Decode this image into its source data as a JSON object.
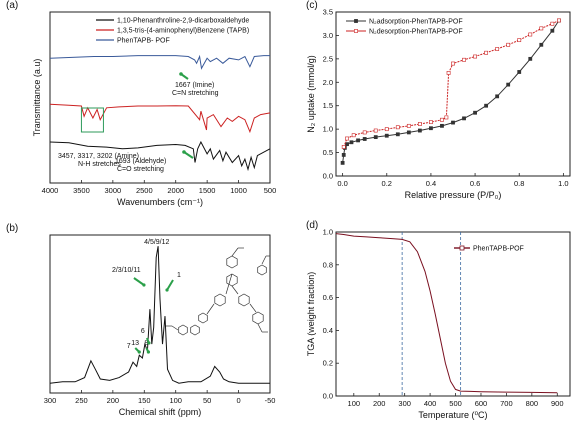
{
  "chart_data": [
    {
      "panel": "(a)",
      "type": "line",
      "xlabel": "Wavenumbers (cm⁻¹)",
      "ylabel": "Transmittance (a.u)",
      "xlim": [
        4000,
        500
      ],
      "xticks": [
        4000,
        3500,
        3000,
        2500,
        2000,
        1500,
        1000,
        500
      ],
      "series": [
        {
          "name": "1,10-Phenanthroline-2,9-dicarboxaldehyde",
          "color": "#111111",
          "x": [
            4000,
            3700,
            3400,
            3100,
            2850,
            2600,
            2300,
            2000,
            1850,
            1720,
            1693,
            1650,
            1600,
            1500,
            1450,
            1400,
            1300,
            1250,
            1200,
            1100,
            1000,
            950,
            900,
            850,
            800,
            750,
            700,
            600,
            500
          ],
          "y": [
            0.24,
            0.235,
            0.215,
            0.21,
            0.2,
            0.205,
            0.22,
            0.225,
            0.22,
            0.2,
            0.12,
            0.2,
            0.24,
            0.17,
            0.2,
            0.14,
            0.19,
            0.13,
            0.18,
            0.12,
            0.16,
            0.1,
            0.14,
            0.08,
            0.15,
            0.09,
            0.16,
            0.18,
            0.2
          ]
        },
        {
          "name": "1,3,5-tris-(4-aminophenyl)Benzene (TAPB)",
          "color": "#cc2222",
          "x": [
            4000,
            3700,
            3500,
            3457,
            3400,
            3317,
            3250,
            3202,
            3100,
            2900,
            2600,
            2300,
            2000,
            1800,
            1620,
            1600,
            1510,
            1500,
            1400,
            1280,
            1180,
            1100,
            1000,
            900,
            820,
            750,
            650,
            500
          ],
          "y": [
            0.46,
            0.455,
            0.45,
            0.39,
            0.44,
            0.38,
            0.43,
            0.37,
            0.44,
            0.445,
            0.45,
            0.45,
            0.452,
            0.45,
            0.37,
            0.42,
            0.31,
            0.38,
            0.4,
            0.33,
            0.38,
            0.36,
            0.39,
            0.37,
            0.3,
            0.38,
            0.4,
            0.41
          ]
        },
        {
          "name": "PhenTAPB- POF",
          "color": "#3a5a9a",
          "x": [
            4000,
            3600,
            3300,
            3000,
            2600,
            2200,
            2000,
            1800,
            1700,
            1667,
            1620,
            1590,
            1500,
            1450,
            1350,
            1250,
            1150,
            1000,
            900,
            820,
            750,
            600,
            500
          ],
          "y": [
            0.73,
            0.735,
            0.74,
            0.74,
            0.745,
            0.745,
            0.745,
            0.74,
            0.72,
            0.7,
            0.74,
            0.67,
            0.73,
            0.71,
            0.73,
            0.7,
            0.73,
            0.72,
            0.74,
            0.68,
            0.74,
            0.745,
            0.745
          ]
        }
      ],
      "annotations": [
        {
          "text": "1667 (Imine)",
          "x": 1667
        },
        {
          "text": "C=N stretching"
        },
        {
          "text": "3457, 3317, 3202 (Amine)",
          "x": 3317
        },
        {
          "text": "N-H stretches"
        },
        {
          "text": "1693 (Aldehyde)",
          "x": 1693
        },
        {
          "text": "C=O stretching"
        }
      ]
    },
    {
      "panel": "(b)",
      "type": "line",
      "xlabel": "Chemical shift (ppm)",
      "xlim": [
        300,
        -50
      ],
      "xticks": [
        300,
        250,
        200,
        150,
        100,
        50,
        0,
        -50
      ],
      "series": [
        {
          "name": "",
          "color": "#111111",
          "x": [
            300,
            280,
            260,
            245,
            235,
            228,
            220,
            205,
            190,
            175,
            168,
            162,
            158,
            153,
            149,
            145,
            141,
            138,
            135,
            131,
            128,
            125,
            121,
            117,
            113,
            105,
            95,
            80,
            60,
            45,
            38,
            30,
            24,
            15,
            0,
            -20,
            -50
          ],
          "y": [
            0.02,
            0.03,
            0.03,
            0.06,
            0.18,
            0.12,
            0.05,
            0.04,
            0.06,
            0.1,
            0.17,
            0.14,
            0.22,
            0.2,
            0.3,
            0.25,
            0.55,
            0.3,
            0.42,
            0.92,
            1.0,
            0.62,
            0.3,
            0.5,
            0.12,
            0.04,
            0.02,
            0.03,
            0.03,
            0.07,
            0.14,
            0.1,
            0.05,
            0.03,
            0.02,
            0.02,
            0.02
          ]
        }
      ],
      "annotations": [
        {
          "text": "4/5/9/12",
          "x": 128
        },
        {
          "text": "2/3/10/11",
          "x": 141
        },
        {
          "text": "1",
          "x": 117
        },
        {
          "text": "6",
          "x": 149
        },
        {
          "text": "13",
          "x": 158
        },
        {
          "text": "8",
          "x": 153
        },
        {
          "text": "7",
          "x": 162
        }
      ]
    },
    {
      "panel": "(c)",
      "type": "line",
      "xlabel": "Relative pressure (P/P₀)",
      "ylabel": "N₂ uptake (mmol/g)",
      "xlim": [
        -0.03,
        1.03
      ],
      "ylim": [
        0,
        3.5
      ],
      "xticks": [
        0.0,
        0.2,
        0.4,
        0.6,
        0.8,
        1.0
      ],
      "yticks": [
        0.0,
        0.5,
        1.0,
        1.5,
        2.0,
        2.5,
        3.0,
        3.5
      ],
      "legend": "top-left",
      "series": [
        {
          "name": "N₂adsorption-PhenTAPB-POF",
          "color": "#333333",
          "marker": "square",
          "x": [
            0.0,
            0.005,
            0.01,
            0.02,
            0.04,
            0.07,
            0.1,
            0.15,
            0.2,
            0.25,
            0.3,
            0.35,
            0.4,
            0.45,
            0.5,
            0.55,
            0.6,
            0.65,
            0.7,
            0.75,
            0.8,
            0.85,
            0.9,
            0.95,
            0.98
          ],
          "y": [
            0.28,
            0.45,
            0.6,
            0.68,
            0.72,
            0.76,
            0.79,
            0.83,
            0.86,
            0.89,
            0.93,
            0.97,
            1.02,
            1.07,
            1.14,
            1.23,
            1.35,
            1.5,
            1.7,
            1.95,
            2.22,
            2.5,
            2.8,
            3.1,
            3.32
          ]
        },
        {
          "name": "N₂desorption-PhenTAPB-POF",
          "color": "#cc2222",
          "marker": "open-square",
          "x": [
            0.98,
            0.95,
            0.9,
            0.85,
            0.8,
            0.75,
            0.7,
            0.65,
            0.6,
            0.55,
            0.5,
            0.48,
            0.47,
            0.45,
            0.4,
            0.35,
            0.3,
            0.25,
            0.2,
            0.15,
            0.1,
            0.05,
            0.02,
            0.005
          ],
          "y": [
            3.32,
            3.25,
            3.15,
            3.02,
            2.9,
            2.8,
            2.71,
            2.63,
            2.55,
            2.48,
            2.4,
            2.2,
            1.25,
            1.2,
            1.15,
            1.11,
            1.07,
            1.04,
            1.0,
            0.97,
            0.93,
            0.87,
            0.8,
            0.62
          ]
        }
      ]
    },
    {
      "panel": "(d)",
      "type": "line",
      "xlabel": "Temperature (⁰C)",
      "ylabel": "TGA (weight fraction)",
      "xlim": [
        30,
        950
      ],
      "ylim": [
        0.0,
        1.0
      ],
      "xticks": [
        100,
        200,
        300,
        400,
        500,
        600,
        700,
        800,
        900
      ],
      "yticks": [
        0.0,
        0.2,
        0.4,
        0.6,
        0.8,
        1.0
      ],
      "legend": "top-right",
      "vlines": [
        290,
        520
      ],
      "series": [
        {
          "name": "PhenTAPB-POF",
          "color": "#7a1020",
          "x": [
            30,
            60,
            100,
            150,
            200,
            250,
            290,
            320,
            350,
            380,
            400,
            420,
            440,
            460,
            480,
            500,
            520,
            560,
            600,
            700,
            800,
            900
          ],
          "y": [
            0.99,
            0.985,
            0.975,
            0.97,
            0.965,
            0.96,
            0.955,
            0.94,
            0.88,
            0.76,
            0.64,
            0.5,
            0.35,
            0.2,
            0.09,
            0.04,
            0.03,
            0.028,
            0.026,
            0.024,
            0.022,
            0.02
          ]
        }
      ]
    }
  ]
}
